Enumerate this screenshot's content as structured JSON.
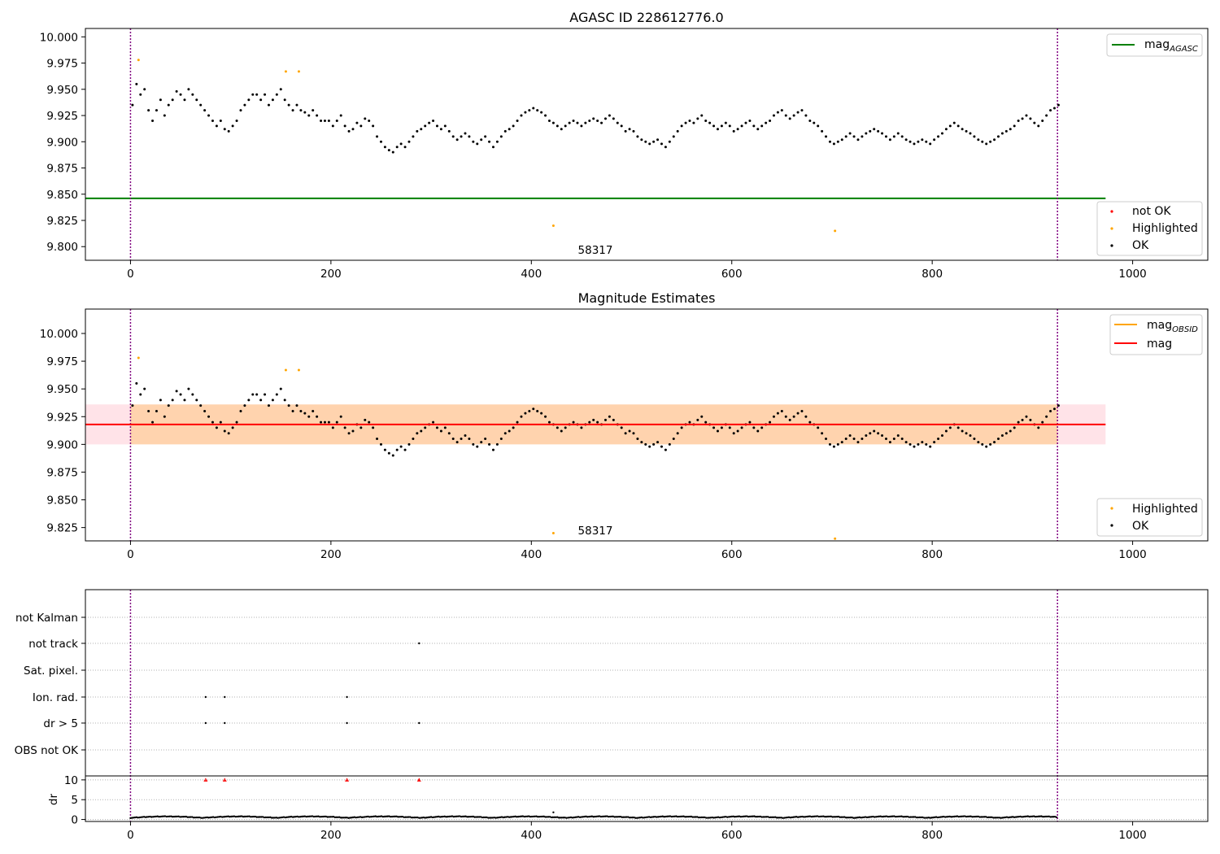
{
  "chart_data": [
    {
      "type": "scatter",
      "title": "AGASC ID 228612776.0",
      "xlim": [
        -45,
        1075
      ],
      "ylim": [
        9.787,
        10.008
      ],
      "xticks": [
        "0",
        "200",
        "400",
        "600",
        "800",
        "1000"
      ],
      "yticks": [
        "9.800",
        "9.825",
        "9.850",
        "9.875",
        "9.900",
        "9.925",
        "9.950",
        "9.975",
        "10.000"
      ],
      "annotation": "58317",
      "grid": false,
      "vlines_x": [
        0,
        925
      ],
      "agasc_mag": 9.846,
      "agasc_line_x": [
        -45,
        973
      ],
      "legend_upper": {
        "placement": "top-right",
        "entries": [
          "mag",
          "AGASC"
        ]
      },
      "legend_lower": {
        "placement": "bottom-right",
        "entries": [
          "not OK",
          "Highlighted",
          "OK"
        ]
      },
      "series": [
        {
          "name": "Highlighted",
          "color": "#ffa500",
          "points": [
            [
              8,
              9.978
            ],
            [
              155,
              9.967
            ],
            [
              168,
              9.967
            ],
            [
              422,
              9.82
            ],
            [
              703,
              9.815
            ]
          ]
        },
        {
          "name": "OK",
          "color": "#000000",
          "points": [
            [
              2,
              9.935
            ],
            [
              6,
              9.955
            ],
            [
              10,
              9.945
            ],
            [
              14,
              9.95
            ],
            [
              18,
              9.93
            ],
            [
              22,
              9.92
            ],
            [
              26,
              9.93
            ],
            [
              30,
              9.94
            ],
            [
              34,
              9.925
            ],
            [
              38,
              9.935
            ],
            [
              42,
              9.94
            ],
            [
              46,
              9.948
            ],
            [
              50,
              9.945
            ],
            [
              54,
              9.94
            ],
            [
              58,
              9.95
            ],
            [
              62,
              9.945
            ],
            [
              66,
              9.94
            ],
            [
              70,
              9.935
            ],
            [
              74,
              9.93
            ],
            [
              78,
              9.925
            ],
            [
              82,
              9.92
            ],
            [
              86,
              9.915
            ],
            [
              90,
              9.92
            ],
            [
              94,
              9.912
            ],
            [
              98,
              9.91
            ],
            [
              102,
              9.915
            ],
            [
              106,
              9.92
            ],
            [
              110,
              9.93
            ],
            [
              114,
              9.935
            ],
            [
              118,
              9.94
            ],
            [
              122,
              9.945
            ],
            [
              126,
              9.945
            ],
            [
              130,
              9.94
            ],
            [
              134,
              9.945
            ],
            [
              138,
              9.935
            ],
            [
              142,
              9.94
            ],
            [
              146,
              9.945
            ],
            [
              150,
              9.95
            ],
            [
              154,
              9.94
            ],
            [
              158,
              9.935
            ],
            [
              162,
              9.93
            ],
            [
              166,
              9.935
            ],
            [
              170,
              9.93
            ],
            [
              174,
              9.928
            ],
            [
              178,
              9.925
            ],
            [
              182,
              9.93
            ],
            [
              186,
              9.925
            ],
            [
              190,
              9.92
            ],
            [
              194,
              9.92
            ],
            [
              198,
              9.92
            ],
            [
              202,
              9.915
            ],
            [
              206,
              9.92
            ],
            [
              210,
              9.925
            ],
            [
              214,
              9.915
            ],
            [
              218,
              9.91
            ],
            [
              222,
              9.912
            ],
            [
              226,
              9.918
            ],
            [
              230,
              9.915
            ],
            [
              234,
              9.922
            ],
            [
              238,
              9.92
            ],
            [
              242,
              9.915
            ],
            [
              246,
              9.905
            ],
            [
              250,
              9.9
            ],
            [
              254,
              9.895
            ],
            [
              258,
              9.892
            ],
            [
              262,
              9.89
            ],
            [
              266,
              9.895
            ],
            [
              270,
              9.898
            ],
            [
              274,
              9.895
            ],
            [
              278,
              9.9
            ],
            [
              282,
              9.905
            ],
            [
              286,
              9.91
            ],
            [
              290,
              9.912
            ],
            [
              294,
              9.915
            ],
            [
              298,
              9.918
            ],
            [
              302,
              9.92
            ],
            [
              306,
              9.915
            ],
            [
              310,
              9.912
            ],
            [
              314,
              9.915
            ],
            [
              318,
              9.91
            ],
            [
              322,
              9.905
            ],
            [
              326,
              9.902
            ],
            [
              330,
              9.905
            ],
            [
              334,
              9.908
            ],
            [
              338,
              9.905
            ],
            [
              342,
              9.9
            ],
            [
              346,
              9.898
            ],
            [
              350,
              9.902
            ],
            [
              354,
              9.905
            ],
            [
              358,
              9.9
            ],
            [
              362,
              9.895
            ],
            [
              366,
              9.9
            ],
            [
              370,
              9.905
            ],
            [
              374,
              9.91
            ],
            [
              378,
              9.912
            ],
            [
              382,
              9.915
            ],
            [
              386,
              9.92
            ],
            [
              390,
              9.925
            ],
            [
              394,
              9.928
            ],
            [
              398,
              9.93
            ],
            [
              402,
              9.932
            ],
            [
              406,
              9.93
            ],
            [
              410,
              9.928
            ],
            [
              414,
              9.925
            ],
            [
              418,
              9.92
            ],
            [
              422,
              9.918
            ],
            [
              426,
              9.915
            ],
            [
              430,
              9.912
            ],
            [
              434,
              9.915
            ],
            [
              438,
              9.918
            ],
            [
              442,
              9.92
            ],
            [
              446,
              9.918
            ],
            [
              450,
              9.915
            ],
            [
              454,
              9.918
            ],
            [
              458,
              9.92
            ],
            [
              462,
              9.922
            ],
            [
              466,
              9.92
            ],
            [
              470,
              9.918
            ],
            [
              474,
              9.922
            ],
            [
              478,
              9.925
            ],
            [
              482,
              9.922
            ],
            [
              486,
              9.918
            ],
            [
              490,
              9.915
            ],
            [
              494,
              9.91
            ],
            [
              498,
              9.912
            ],
            [
              502,
              9.91
            ],
            [
              506,
              9.905
            ],
            [
              510,
              9.902
            ],
            [
              514,
              9.9
            ],
            [
              518,
              9.898
            ],
            [
              522,
              9.9
            ],
            [
              526,
              9.902
            ],
            [
              530,
              9.898
            ],
            [
              534,
              9.895
            ],
            [
              538,
              9.9
            ],
            [
              542,
              9.905
            ],
            [
              546,
              9.91
            ],
            [
              550,
              9.915
            ],
            [
              554,
              9.918
            ],
            [
              558,
              9.92
            ],
            [
              562,
              9.918
            ],
            [
              566,
              9.922
            ],
            [
              570,
              9.925
            ],
            [
              574,
              9.92
            ],
            [
              578,
              9.918
            ],
            [
              582,
              9.915
            ],
            [
              586,
              9.912
            ],
            [
              590,
              9.915
            ],
            [
              594,
              9.918
            ],
            [
              598,
              9.915
            ],
            [
              602,
              9.91
            ],
            [
              606,
              9.912
            ],
            [
              610,
              9.915
            ],
            [
              614,
              9.918
            ],
            [
              618,
              9.92
            ],
            [
              622,
              9.915
            ],
            [
              626,
              9.912
            ],
            [
              630,
              9.915
            ],
            [
              634,
              9.918
            ],
            [
              638,
              9.92
            ],
            [
              642,
              9.925
            ],
            [
              646,
              9.928
            ],
            [
              650,
              9.93
            ],
            [
              654,
              9.925
            ],
            [
              658,
              9.922
            ],
            [
              662,
              9.925
            ],
            [
              666,
              9.928
            ],
            [
              670,
              9.93
            ],
            [
              674,
              9.925
            ],
            [
              678,
              9.92
            ],
            [
              682,
              9.918
            ],
            [
              686,
              9.915
            ],
            [
              690,
              9.91
            ],
            [
              694,
              9.905
            ],
            [
              698,
              9.9
            ],
            [
              702,
              9.898
            ],
            [
              706,
              9.9
            ],
            [
              710,
              9.902
            ],
            [
              714,
              9.905
            ],
            [
              718,
              9.908
            ],
            [
              722,
              9.905
            ],
            [
              726,
              9.902
            ],
            [
              730,
              9.905
            ],
            [
              734,
              9.908
            ],
            [
              738,
              9.91
            ],
            [
              742,
              9.912
            ],
            [
              746,
              9.91
            ],
            [
              750,
              9.908
            ],
            [
              754,
              9.905
            ],
            [
              758,
              9.902
            ],
            [
              762,
              9.905
            ],
            [
              766,
              9.908
            ],
            [
              770,
              9.905
            ],
            [
              774,
              9.902
            ],
            [
              778,
              9.9
            ],
            [
              782,
              9.898
            ],
            [
              786,
              9.9
            ],
            [
              790,
              9.902
            ],
            [
              794,
              9.9
            ],
            [
              798,
              9.898
            ],
            [
              802,
              9.902
            ],
            [
              806,
              9.905
            ],
            [
              810,
              9.908
            ],
            [
              814,
              9.912
            ],
            [
              818,
              9.915
            ],
            [
              822,
              9.918
            ],
            [
              826,
              9.915
            ],
            [
              830,
              9.912
            ],
            [
              834,
              9.91
            ],
            [
              838,
              9.908
            ],
            [
              842,
              9.905
            ],
            [
              846,
              9.902
            ],
            [
              850,
              9.9
            ],
            [
              854,
              9.898
            ],
            [
              858,
              9.9
            ],
            [
              862,
              9.902
            ],
            [
              866,
              9.905
            ],
            [
              870,
              9.908
            ],
            [
              874,
              9.91
            ],
            [
              878,
              9.912
            ],
            [
              882,
              9.915
            ],
            [
              886,
              9.92
            ],
            [
              890,
              9.922
            ],
            [
              894,
              9.925
            ],
            [
              898,
              9.922
            ],
            [
              902,
              9.918
            ],
            [
              906,
              9.915
            ],
            [
              910,
              9.92
            ],
            [
              914,
              9.925
            ],
            [
              918,
              9.93
            ],
            [
              922,
              9.932
            ],
            [
              926,
              9.935
            ]
          ]
        }
      ]
    },
    {
      "type": "scatter",
      "title": "Magnitude Estimates",
      "xlim": [
        -45,
        1075
      ],
      "ylim": [
        9.813,
        10.022
      ],
      "xticks": [
        "0",
        "200",
        "400",
        "600",
        "800",
        "1000"
      ],
      "yticks": [
        "9.825",
        "9.850",
        "9.875",
        "9.900",
        "9.925",
        "9.950",
        "9.975",
        "10.000"
      ],
      "annotation": "58317",
      "grid": false,
      "vlines_x": [
        0,
        925
      ],
      "mag": 9.918,
      "band_outer": {
        "x": [
          -45,
          973
        ],
        "y": [
          9.9,
          9.936
        ]
      },
      "band_inner": {
        "x": [
          0,
          925
        ],
        "y": [
          9.9,
          9.936
        ]
      },
      "legend_upper": {
        "placement": "top-right",
        "entries": [
          "mag",
          "OBSID",
          "mag"
        ]
      },
      "legend_lower": {
        "placement": "bottom-right",
        "entries": [
          "Highlighted",
          "OK"
        ]
      },
      "series_ref": "same points as panel 1"
    },
    {
      "type": "scatter",
      "title": "",
      "xlim": [
        -45,
        1075
      ],
      "xticks": [
        "0",
        "200",
        "400",
        "600",
        "800",
        "1000"
      ],
      "flag_labels": [
        "not Kalman",
        "not track",
        "Sat. pixel.",
        "Ion. rad.",
        "dr > 5",
        "OBS not OK"
      ],
      "flag_points": {
        "not track": [
          288
        ],
        "Ion. rad.": [
          75,
          94,
          216
        ],
        "dr > 5": [
          75,
          94,
          216,
          288
        ]
      },
      "dr_ylabel": "dr",
      "dr_yticks": [
        "0",
        "5",
        "10"
      ],
      "dr_ylim": [
        -0.5,
        11
      ],
      "dr_clipped_x": [
        75,
        94,
        216,
        288
      ],
      "dr_points_note": "dr values near 0–1 for all observations",
      "vlines_x": [
        0,
        925
      ]
    }
  ]
}
